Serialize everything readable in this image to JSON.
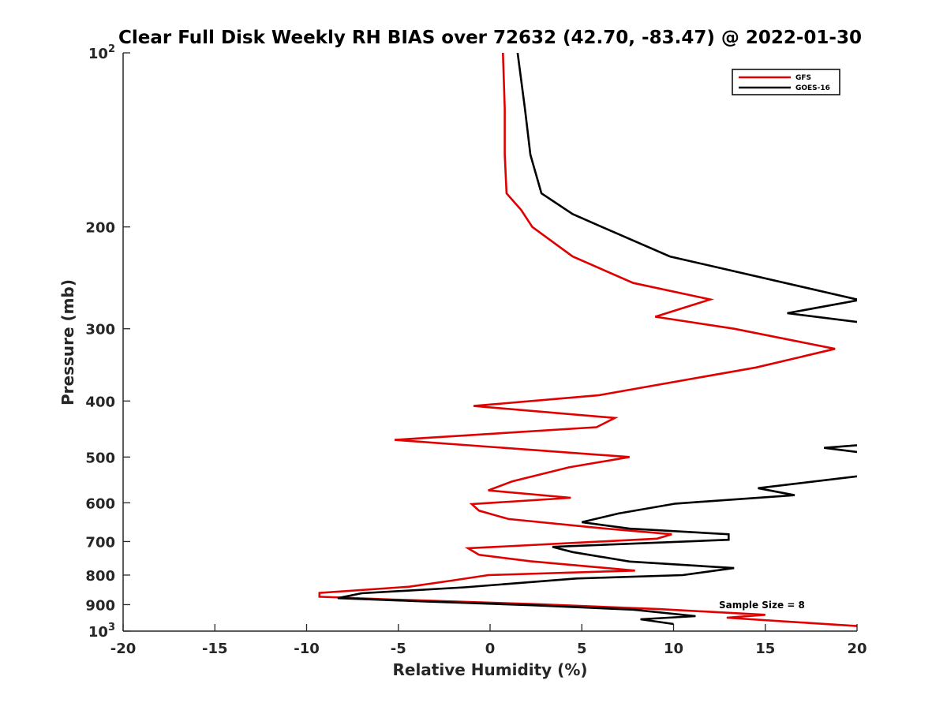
{
  "chart_data": {
    "type": "line",
    "title": "Clear Full Disk Weekly RH BIAS over 72632 (42.70, -83.47) @ 2022-01-30",
    "xlabel": "Relative Humidity (%)",
    "ylabel": "Pressure (mb)",
    "xlim": [
      -20,
      20
    ],
    "ylim": [
      100,
      1000
    ],
    "yscale": "log",
    "y_reversed": true,
    "x_ticks": [
      "-20",
      "-15",
      "-10",
      "-5",
      "0",
      "5",
      "10",
      "15",
      "20"
    ],
    "y_ticks": [
      {
        "value": 100,
        "label": "10",
        "exp": "2"
      },
      {
        "value": 200,
        "label": "200"
      },
      {
        "value": 300,
        "label": "300"
      },
      {
        "value": 400,
        "label": "400"
      },
      {
        "value": 500,
        "label": "500"
      },
      {
        "value": 600,
        "label": "600"
      },
      {
        "value": 700,
        "label": "700"
      },
      {
        "value": 800,
        "label": "800"
      },
      {
        "value": 900,
        "label": "900"
      },
      {
        "value": 1000,
        "label": "10",
        "exp": "3"
      }
    ],
    "grid": false,
    "legend_position": "top-right",
    "annotation": "Sample Size = 8",
    "series": [
      {
        "name": "GFS",
        "color": "#e00000",
        "points": [
          [
            0.7,
            100
          ],
          [
            0.8,
            125
          ],
          [
            0.8,
            150
          ],
          [
            0.9,
            175
          ],
          [
            1.7,
            187
          ],
          [
            2.3,
            200
          ],
          [
            4.5,
            225
          ],
          [
            7.8,
            250
          ],
          [
            12.0,
            267
          ],
          [
            9.0,
            286
          ],
          [
            13.3,
            300
          ],
          [
            18.8,
            325
          ],
          [
            14.5,
            350
          ],
          [
            5.9,
            391
          ],
          [
            -0.9,
            408
          ],
          [
            6.8,
            428
          ],
          [
            5.8,
            444
          ],
          [
            -5.2,
            467
          ],
          [
            2.3,
            486
          ],
          [
            7.6,
            500
          ],
          [
            4.3,
            521
          ],
          [
            1.2,
            551
          ],
          [
            -0.1,
            571
          ],
          [
            4.4,
            588
          ],
          [
            -1.0,
            603
          ],
          [
            -0.6,
            619
          ],
          [
            1.0,
            640
          ],
          [
            5.9,
            663
          ],
          [
            9.9,
            680
          ],
          [
            9.1,
            692
          ],
          [
            -1.2,
            719
          ],
          [
            -0.6,
            738
          ],
          [
            2.2,
            757
          ],
          [
            7.9,
            786
          ],
          [
            -0.1,
            800
          ],
          [
            -2.1,
            818
          ],
          [
            -4.4,
            838
          ],
          [
            -9.3,
            859
          ],
          [
            -9.3,
            872
          ],
          [
            -5.3,
            882
          ],
          [
            2.5,
            898
          ],
          [
            9.2,
            916
          ],
          [
            15.0,
            937
          ],
          [
            12.9,
            948
          ],
          [
            20.0,
            980
          ]
        ]
      },
      {
        "name": "GOES-16",
        "color": "#000000",
        "segments": [
          [
            [
              1.5,
              100
            ],
            [
              1.9,
              125
            ],
            [
              2.2,
              150
            ],
            [
              2.8,
              175
            ],
            [
              4.5,
              190
            ],
            [
              6.1,
              200
            ],
            [
              9.8,
              225
            ],
            [
              20.0,
              267
            ]
          ],
          [
            [
              20.0,
              268
            ],
            [
              16.2,
              282
            ],
            [
              20.0,
              292
            ]
          ],
          [
            [
              20.0,
              477
            ],
            [
              18.2,
              482
            ],
            [
              20.0,
              490
            ]
          ],
          [
            [
              20.0,
              540
            ],
            [
              14.6,
              566
            ],
            [
              16.6,
              582
            ],
            [
              10.1,
              602
            ],
            [
              7.0,
              626
            ],
            [
              5.0,
              648
            ],
            [
              7.6,
              665
            ],
            [
              13.0,
              680
            ],
            [
              13.0,
              695
            ],
            [
              3.4,
              715
            ],
            [
              4.5,
              730
            ],
            [
              7.6,
              758
            ],
            [
              13.3,
              778
            ],
            [
              10.5,
              800
            ],
            [
              4.7,
              811
            ],
            [
              -1.4,
              840
            ],
            [
              -7.0,
              860
            ],
            [
              -8.3,
              877
            ],
            [
              -3.8,
              888
            ],
            [
              2.3,
              902
            ],
            [
              7.8,
              918
            ],
            [
              11.2,
              942
            ],
            [
              8.2,
              954
            ],
            [
              10.0,
              972
            ]
          ]
        ]
      }
    ]
  }
}
